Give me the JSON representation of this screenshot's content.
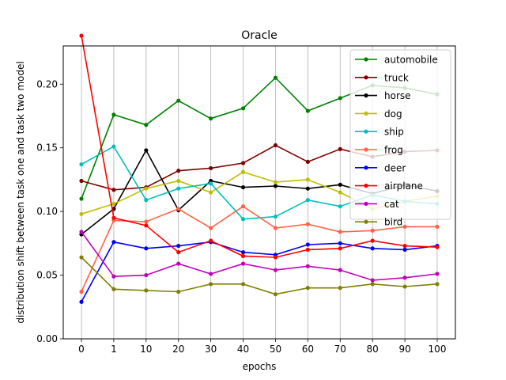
{
  "chart_data": {
    "type": "line",
    "title": "Oracle",
    "xlabel": "epochs",
    "ylabel": "distribution shift between task one and task two model",
    "categories": [
      "0",
      "1",
      "10",
      "20",
      "30",
      "40",
      "50",
      "60",
      "70",
      "80",
      "90",
      "100"
    ],
    "ylim": [
      0.0,
      0.23
    ],
    "yticks": [
      0.0,
      0.05,
      0.1,
      0.15,
      0.2
    ],
    "ytick_labels": [
      "0.00",
      "0.05",
      "0.10",
      "0.15",
      "0.20"
    ],
    "grid": "x",
    "legend_position": "top-right",
    "series": [
      {
        "name": "automobile",
        "color": "#008000",
        "values": [
          0.11,
          0.176,
          0.168,
          0.187,
          0.173,
          0.181,
          0.205,
          0.179,
          0.189,
          0.199,
          0.197,
          0.192
        ]
      },
      {
        "name": "truck",
        "color": "#800000",
        "values": [
          0.124,
          0.117,
          0.119,
          0.132,
          0.134,
          0.138,
          0.152,
          0.139,
          0.149,
          0.143,
          0.147,
          0.148
        ]
      },
      {
        "name": "horse",
        "color": "#000000",
        "values": [
          0.082,
          0.102,
          0.148,
          0.101,
          0.124,
          0.119,
          0.12,
          0.118,
          0.121,
          0.114,
          0.121,
          0.116
        ]
      },
      {
        "name": "dog",
        "color": "#bfbf00",
        "values": [
          0.098,
          0.106,
          0.118,
          0.124,
          0.115,
          0.131,
          0.123,
          0.125,
          0.115,
          0.102,
          0.108,
          0.112
        ]
      },
      {
        "name": "ship",
        "color": "#00bfbf",
        "values": [
          0.137,
          0.151,
          0.109,
          0.118,
          0.122,
          0.094,
          0.096,
          0.109,
          0.104,
          0.113,
          0.108,
          0.106
        ]
      },
      {
        "name": "frog",
        "color": "#ff6347",
        "values": [
          0.037,
          0.093,
          0.092,
          0.102,
          0.087,
          0.104,
          0.087,
          0.09,
          0.084,
          0.085,
          0.088,
          0.088
        ]
      },
      {
        "name": "deer",
        "color": "#0000ff",
        "values": [
          0.029,
          0.076,
          0.071,
          0.073,
          0.076,
          0.068,
          0.066,
          0.074,
          0.075,
          0.071,
          0.07,
          0.073
        ]
      },
      {
        "name": "airplane",
        "color": "#ff0000",
        "values": [
          0.238,
          0.095,
          0.089,
          0.068,
          0.077,
          0.065,
          0.064,
          0.07,
          0.071,
          0.077,
          0.073,
          0.072
        ]
      },
      {
        "name": "cat",
        "color": "#bf00bf",
        "values": [
          0.084,
          0.049,
          0.05,
          0.059,
          0.051,
          0.059,
          0.054,
          0.057,
          0.054,
          0.046,
          0.048,
          0.051
        ]
      },
      {
        "name": "bird",
        "color": "#808000",
        "values": [
          0.064,
          0.039,
          0.038,
          0.037,
          0.043,
          0.043,
          0.035,
          0.04,
          0.04,
          0.043,
          0.041,
          0.043
        ]
      }
    ]
  }
}
